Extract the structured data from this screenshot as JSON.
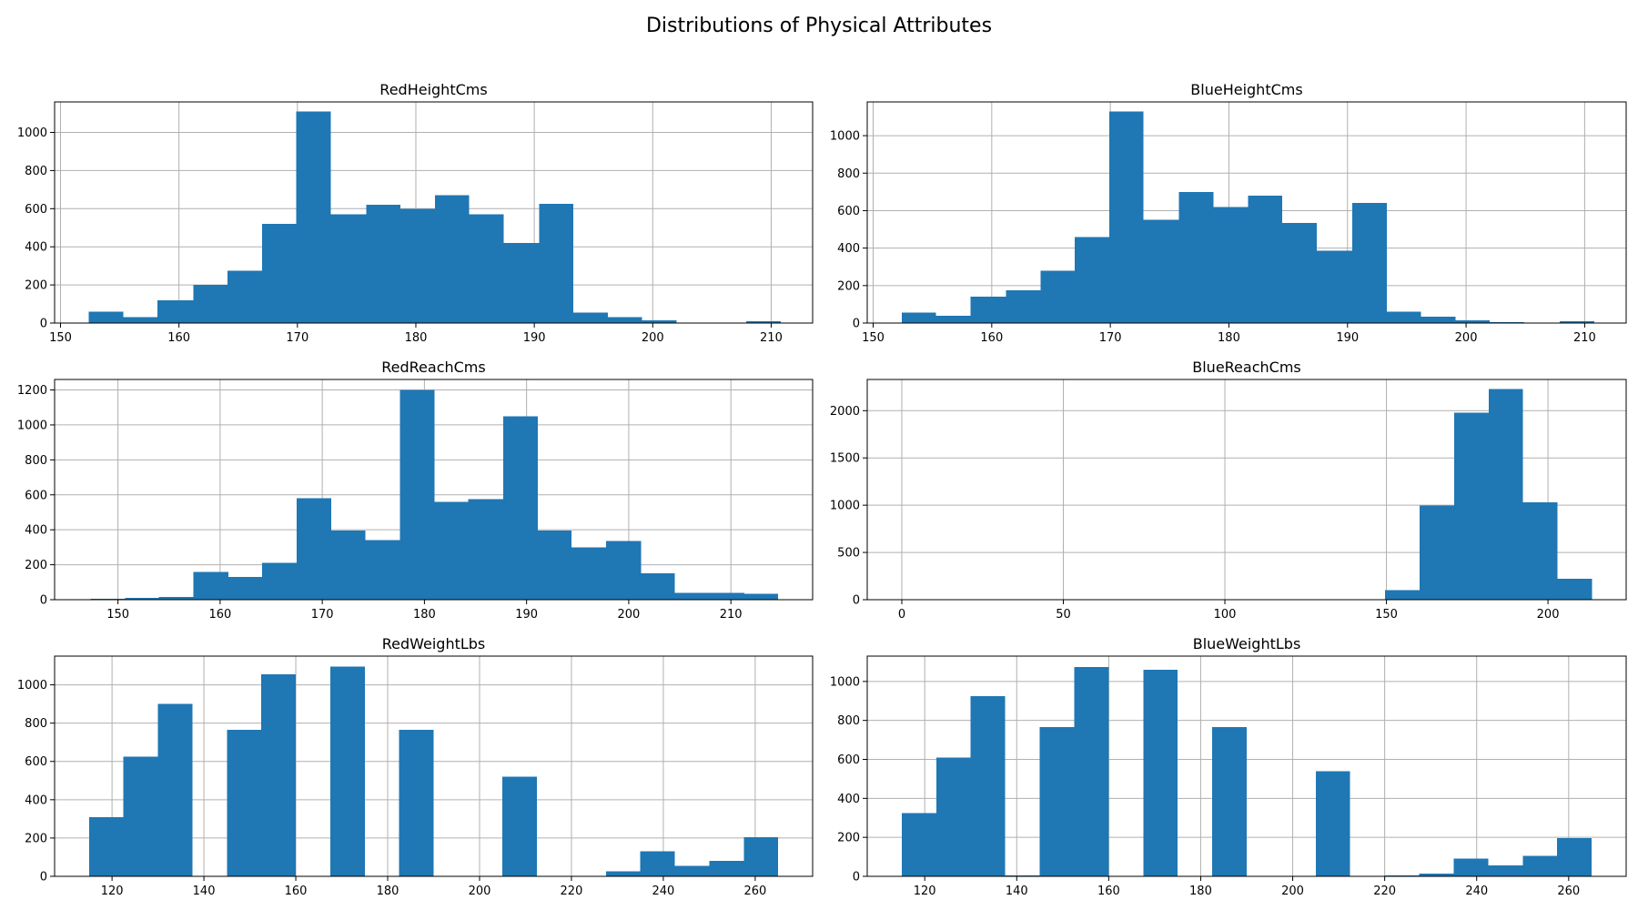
{
  "figure": {
    "suptitle": "Distributions of Physical Attributes",
    "bar_color": "#1f77b4",
    "grid": true
  },
  "chart_data": [
    {
      "type": "bar",
      "title": "RedHeightCms",
      "xlabel": "",
      "ylabel": "",
      "xlim": [
        149.5,
        213.5
      ],
      "ylim": [
        0,
        1160
      ],
      "xticks": [
        150,
        160,
        170,
        180,
        190,
        200,
        210
      ],
      "yticks": [
        0,
        200,
        400,
        600,
        800,
        1000
      ],
      "bin_edges": [
        152.4,
        155.3,
        158.2,
        161.2,
        164.1,
        167.0,
        169.9,
        172.8,
        175.8,
        178.7,
        181.6,
        184.5,
        187.4,
        190.4,
        193.3,
        196.2,
        199.1,
        202.0,
        204.9,
        207.9,
        210.8
      ],
      "values": [
        60,
        30,
        120,
        200,
        275,
        520,
        1110,
        570,
        620,
        600,
        670,
        570,
        420,
        625,
        55,
        30,
        15,
        0,
        0,
        10
      ]
    },
    {
      "type": "bar",
      "title": "BlueHeightCms",
      "xlabel": "",
      "ylabel": "",
      "xlim": [
        149.5,
        213.5
      ],
      "ylim": [
        0,
        1180
      ],
      "xticks": [
        150,
        160,
        170,
        180,
        190,
        200,
        210
      ],
      "yticks": [
        0,
        200,
        400,
        600,
        800,
        1000
      ],
      "bin_edges": [
        152.4,
        155.3,
        158.2,
        161.2,
        164.1,
        167.0,
        169.9,
        172.8,
        175.8,
        178.7,
        181.6,
        184.5,
        187.4,
        190.4,
        193.3,
        196.2,
        199.1,
        202.0,
        204.9,
        207.9,
        210.8
      ],
      "values": [
        55,
        40,
        140,
        175,
        280,
        460,
        1130,
        550,
        700,
        620,
        680,
        535,
        385,
        640,
        60,
        35,
        15,
        5,
        0,
        10
      ]
    },
    {
      "type": "bar",
      "title": "RedReachCms",
      "xlabel": "",
      "ylabel": "",
      "xlim": [
        143.8,
        218.0
      ],
      "ylim": [
        0,
        1260
      ],
      "xticks": [
        150,
        160,
        170,
        180,
        190,
        200,
        210
      ],
      "yticks": [
        0,
        200,
        400,
        600,
        800,
        1000,
        1200
      ],
      "bin_edges": [
        147.3,
        150.7,
        154.0,
        157.4,
        160.8,
        164.1,
        167.5,
        170.9,
        174.2,
        177.6,
        181.0,
        184.3,
        187.7,
        191.1,
        194.4,
        197.8,
        201.2,
        204.5,
        207.9,
        211.3,
        214.6
      ],
      "values": [
        5,
        10,
        15,
        160,
        130,
        210,
        580,
        395,
        340,
        1200,
        560,
        575,
        1050,
        395,
        300,
        335,
        150,
        40,
        40,
        35
      ]
    },
    {
      "type": "bar",
      "title": "BlueReachCms",
      "xlabel": "",
      "ylabel": "",
      "xlim": [
        -10.7,
        224.2
      ],
      "ylim": [
        0,
        2330
      ],
      "xticks": [
        0,
        50,
        100,
        150,
        200
      ],
      "yticks": [
        0,
        500,
        1000,
        1500,
        2000
      ],
      "bin_edges": [
        0.0,
        10.7,
        21.4,
        32.0,
        42.7,
        53.4,
        64.1,
        74.8,
        85.4,
        96.1,
        106.8,
        117.5,
        128.2,
        138.8,
        149.5,
        160.2,
        170.9,
        181.6,
        192.2,
        202.9,
        213.6
      ],
      "values": [
        0,
        0,
        0,
        0,
        0,
        0,
        0,
        0,
        0,
        0,
        0,
        0,
        0,
        5,
        100,
        995,
        1980,
        2230,
        1030,
        220
      ]
    },
    {
      "type": "bar",
      "title": "RedWeightLbs",
      "xlabel": "",
      "ylabel": "",
      "xlim": [
        107.5,
        272.5
      ],
      "ylim": [
        0,
        1150
      ],
      "xticks": [
        120,
        140,
        160,
        180,
        200,
        220,
        240,
        260
      ],
      "yticks": [
        0,
        200,
        400,
        600,
        800,
        1000
      ],
      "bin_edges": [
        115.0,
        122.5,
        130.0,
        137.5,
        145.0,
        152.5,
        160.0,
        167.5,
        175.0,
        182.5,
        190.0,
        197.5,
        205.0,
        212.5,
        220.0,
        227.5,
        235.0,
        242.5,
        250.0,
        257.5,
        265.0
      ],
      "values": [
        310,
        625,
        900,
        0,
        765,
        1055,
        0,
        1095,
        0,
        765,
        0,
        0,
        520,
        0,
        0,
        25,
        130,
        55,
        80,
        205
      ]
    },
    {
      "type": "bar",
      "title": "BlueWeightLbs",
      "xlabel": "",
      "ylabel": "",
      "xlim": [
        107.5,
        272.5
      ],
      "ylim": [
        0,
        1130
      ],
      "xticks": [
        120,
        140,
        160,
        180,
        200,
        220,
        240,
        260
      ],
      "yticks": [
        0,
        200,
        400,
        600,
        800,
        1000
      ],
      "bin_edges": [
        115.0,
        122.5,
        130.0,
        137.5,
        145.0,
        152.5,
        160.0,
        167.5,
        175.0,
        182.5,
        190.0,
        197.5,
        205.0,
        212.5,
        220.0,
        227.5,
        235.0,
        242.5,
        250.0,
        257.5,
        265.0
      ],
      "values": [
        325,
        610,
        925,
        5,
        765,
        1075,
        0,
        1060,
        0,
        765,
        0,
        0,
        540,
        0,
        5,
        15,
        90,
        55,
        105,
        195
      ]
    }
  ]
}
